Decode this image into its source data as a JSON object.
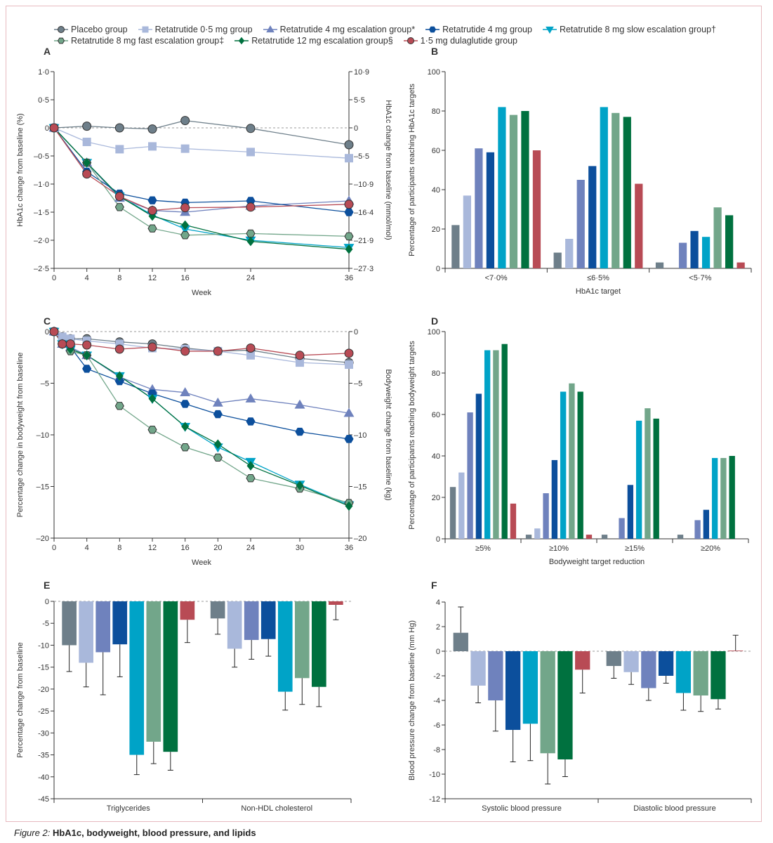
{
  "legend": [
    {
      "label": "Placebo group",
      "color": "#6e7f8a",
      "marker": "circle"
    },
    {
      "label": "Retatrutide 0·5 mg group",
      "color": "#a9b8db",
      "marker": "square"
    },
    {
      "label": "Retatrutide 4 mg escalation group*",
      "color": "#6f82bd",
      "marker": "triangle-up"
    },
    {
      "label": "Retatrutide 4 mg group",
      "color": "#0c4f9c",
      "marker": "hexagon"
    },
    {
      "label": "Retatrutide 8 mg slow escalation group†",
      "color": "#00a3c7",
      "marker": "triangle-down"
    },
    {
      "label": "Retatrutide 8 mg fast escalation group‡",
      "color": "#72a68a",
      "marker": "hexagon"
    },
    {
      "label": "Retatrutide 12 mg escalation group§",
      "color": "#00713f",
      "marker": "diamond"
    },
    {
      "label": "1·5 mg dulaglutide  group",
      "color": "#b84b55",
      "marker": "circle"
    }
  ],
  "caption": {
    "prefix": "Figure 2:",
    "title": "HbA1c, bodyweight, blood pressure, and lipids"
  },
  "chart_data": [
    {
      "panel": "A",
      "type": "line",
      "x": [
        0,
        4,
        8,
        12,
        16,
        24,
        36
      ],
      "xticklabels": [
        "0",
        "4",
        "8",
        "12",
        "16",
        "24",
        "36"
      ],
      "xlabel": "Week",
      "ylabel": "HbA1c change from baseline (%)",
      "ylabel_right": "HbA1c change from baseline (mmol/mol)",
      "ylim": [
        -2.5,
        1.0
      ],
      "yticks": [
        1.0,
        0.5,
        0,
        -0.5,
        -1.0,
        -1.5,
        -2.0,
        -2.5
      ],
      "yticklabels": [
        "1·0",
        "0·5",
        "0",
        "–0·5",
        "–1·0",
        "–1·5",
        "–2·0",
        "–2·5"
      ],
      "yticklabels_right": [
        "10·9",
        "5·5",
        "0",
        "–5·5",
        "–10·9",
        "–16·4",
        "–21·9",
        "–27·3"
      ],
      "series": [
        {
          "values": [
            0,
            0.03,
            0,
            -0.02,
            0.13,
            -0.01,
            -0.3
          ]
        },
        {
          "values": [
            0,
            -0.25,
            -0.38,
            -0.33,
            -0.37,
            -0.43,
            -0.54
          ]
        },
        {
          "values": [
            0,
            -0.62,
            -1.25,
            -1.47,
            -1.5,
            -1.39,
            -1.3
          ]
        },
        {
          "values": [
            0,
            -0.78,
            -1.17,
            -1.29,
            -1.33,
            -1.3,
            -1.5
          ]
        },
        {
          "values": [
            0,
            -0.62,
            -1.22,
            -1.55,
            -1.8,
            -2.0,
            -2.13
          ]
        },
        {
          "values": [
            0,
            -0.62,
            -1.41,
            -1.79,
            -1.91,
            -1.88,
            -1.93
          ]
        },
        {
          "values": [
            0,
            -0.62,
            -1.22,
            -1.57,
            -1.73,
            -2.02,
            -2.16
          ]
        },
        {
          "values": [
            0,
            -0.82,
            -1.22,
            -1.47,
            -1.42,
            -1.41,
            -1.36
          ]
        }
      ]
    },
    {
      "panel": "B",
      "type": "bar",
      "categories": [
        "<7·0%",
        "≤6·5%",
        "<5·7%"
      ],
      "xlabel": "HbA1c target",
      "ylabel": "Percentage of participants reaching HbA1c targets",
      "ylim": [
        0,
        100
      ],
      "yticks": [
        0,
        20,
        40,
        60,
        80,
        100
      ],
      "yticklabels": [
        "0",
        "20",
        "40",
        "60",
        "80",
        "100"
      ],
      "series": [
        {
          "values": [
            22,
            8,
            3
          ]
        },
        {
          "values": [
            37,
            15,
            0
          ]
        },
        {
          "values": [
            61,
            45,
            13
          ]
        },
        {
          "values": [
            59,
            52,
            19
          ]
        },
        {
          "values": [
            82,
            82,
            16
          ]
        },
        {
          "values": [
            78,
            79,
            31
          ]
        },
        {
          "values": [
            80,
            77,
            27
          ]
        },
        {
          "values": [
            60,
            43,
            3
          ]
        }
      ]
    },
    {
      "panel": "C",
      "type": "line",
      "x": [
        0,
        1,
        2,
        4,
        8,
        12,
        16,
        20,
        24,
        30,
        36
      ],
      "xticks": [
        0,
        4,
        8,
        12,
        16,
        20,
        24,
        30,
        36
      ],
      "xticklabels": [
        "0",
        "4",
        "8",
        "12",
        "16",
        "20",
        "24",
        "30",
        "36"
      ],
      "xlabel": "Week",
      "ylabel": "Percentage change in bodyweight from baseline",
      "ylabel_right": "Bodyweight change from baseline (kg)",
      "ylim": [
        -20,
        0
      ],
      "yticks": [
        0,
        -5,
        -10,
        -15,
        -20
      ],
      "yticklabels": [
        "0",
        "–5",
        "–10",
        "–15",
        "–20"
      ],
      "yticklabels_right": [
        "0",
        "–5",
        "–10",
        "–15",
        "–20"
      ],
      "series": [
        {
          "values": [
            0,
            -0.5,
            -0.7,
            -0.7,
            -1.0,
            -1.2,
            -1.6,
            -1.9,
            -1.8,
            -2.6,
            -3.0
          ]
        },
        {
          "values": [
            0,
            -0.5,
            -0.7,
            -0.9,
            -1.2,
            -1.6,
            -1.7,
            -1.9,
            -2.3,
            -3.0,
            -3.2
          ]
        },
        {
          "values": [
            0,
            -1.2,
            -1.5,
            -2.3,
            -4.4,
            -5.6,
            -5.9,
            -6.9,
            -6.5,
            -7.1,
            -7.9
          ]
        },
        {
          "values": [
            0,
            -1.2,
            -1.5,
            -3.6,
            -4.8,
            -6.0,
            -7.0,
            -8.0,
            -8.7,
            -9.7,
            -10.4
          ]
        },
        {
          "values": [
            0,
            -1.2,
            -1.7,
            -2.3,
            -4.3,
            -6.5,
            -9.2,
            -11.2,
            -12.6,
            -14.8,
            -16.8
          ]
        },
        {
          "values": [
            0,
            -1.2,
            -1.9,
            -2.3,
            -7.2,
            -9.5,
            -11.2,
            -12.2,
            -14.2,
            -15.2,
            -16.6
          ]
        },
        {
          "values": [
            0,
            -1.2,
            -1.7,
            -2.3,
            -4.3,
            -6.5,
            -9.2,
            -10.9,
            -13.0,
            -14.9,
            -16.9
          ]
        },
        {
          "values": [
            0,
            -1.2,
            -1.2,
            -1.3,
            -1.7,
            -1.5,
            -1.9,
            -1.9,
            -1.6,
            -2.3,
            -2.1
          ]
        }
      ]
    },
    {
      "panel": "D",
      "type": "bar",
      "categories": [
        "≥5%",
        "≥10%",
        "≥15%",
        "≥20%"
      ],
      "xlabel": "Bodyweight target reduction",
      "ylabel": "Percentage of participants reaching bodyweight targets",
      "ylim": [
        0,
        100
      ],
      "yticks": [
        0,
        20,
        40,
        60,
        80,
        100
      ],
      "yticklabels": [
        "0",
        "20",
        "40",
        "60",
        "80",
        "100"
      ],
      "series": [
        {
          "values": [
            25,
            2,
            2,
            2
          ]
        },
        {
          "values": [
            32,
            5,
            0,
            0
          ]
        },
        {
          "values": [
            61,
            22,
            10,
            9
          ]
        },
        {
          "values": [
            70,
            38,
            26,
            14
          ]
        },
        {
          "values": [
            91,
            71,
            57,
            39
          ]
        },
        {
          "values": [
            91,
            75,
            63,
            39
          ]
        },
        {
          "values": [
            94,
            71,
            58,
            40
          ]
        },
        {
          "values": [
            17,
            2,
            0,
            0
          ]
        }
      ]
    },
    {
      "panel": "E",
      "type": "bar",
      "categories": [
        "Triglycerides",
        "Non-HDL cholesterol"
      ],
      "xlabel": "",
      "ylabel": "Percentage change from baseline",
      "ylim": [
        -45,
        0
      ],
      "yticks": [
        0,
        -5,
        -10,
        -15,
        -20,
        -25,
        -30,
        -35,
        -40,
        -45
      ],
      "yticklabels": [
        "0",
        "-5",
        "-10",
        "-15",
        "-20",
        "-25",
        "-30",
        "-35",
        "-40",
        "-45"
      ],
      "series": [
        {
          "values": [
            -10,
            -3.9
          ],
          "error_end": [
            -16,
            -7.5
          ]
        },
        {
          "values": [
            -14,
            -10.8
          ],
          "error_end": [
            -19.5,
            -15
          ]
        },
        {
          "values": [
            -11.6,
            -8.8
          ],
          "error_end": [
            -21.3,
            -13.2
          ]
        },
        {
          "values": [
            -9.8,
            -8.6
          ],
          "error_end": [
            -17.2,
            -12.5
          ]
        },
        {
          "values": [
            -35,
            -20.6
          ],
          "error_end": [
            -39.5,
            -24.8
          ]
        },
        {
          "values": [
            -32,
            -17.5
          ],
          "error_end": [
            -37,
            -23.5
          ]
        },
        {
          "values": [
            -34.3,
            -19.5
          ],
          "error_end": [
            -38.5,
            -24
          ]
        },
        {
          "values": [
            -4.2,
            -0.8
          ],
          "error_end": [
            -9.4,
            -4.2
          ]
        }
      ]
    },
    {
      "panel": "F",
      "type": "bar",
      "categories": [
        "Systolic blood pressure",
        "Diastolic blood pressure"
      ],
      "xlabel": "",
      "ylabel": "Blood pressure change from baseline (mm Hg)",
      "ylim": [
        -12,
        4
      ],
      "yticks": [
        4,
        2,
        0,
        -2,
        -4,
        -6,
        -8,
        -10,
        -12
      ],
      "yticklabels": [
        "4",
        "2",
        "0",
        "-2",
        "-4",
        "-6",
        "-8",
        "-10",
        "-12"
      ],
      "series": [
        {
          "values": [
            1.5,
            -1.2
          ],
          "error_end": [
            3.6,
            -2.2
          ]
        },
        {
          "values": [
            -2.8,
            -1.7
          ],
          "error_end": [
            -4.2,
            -2.7
          ]
        },
        {
          "values": [
            -4.0,
            -3.0
          ],
          "error_end": [
            -6.5,
            -4.0
          ]
        },
        {
          "values": [
            -6.4,
            -2.0
          ],
          "error_end": [
            -9.0,
            -2.6
          ]
        },
        {
          "values": [
            -5.9,
            -3.4
          ],
          "error_end": [
            -8.9,
            -4.8
          ]
        },
        {
          "values": [
            -8.3,
            -3.6
          ],
          "error_end": [
            -10.8,
            -4.9
          ]
        },
        {
          "values": [
            -8.8,
            -3.9
          ],
          "error_end": [
            -10.2,
            -4.7
          ]
        },
        {
          "values": [
            -1.5,
            0.05
          ],
          "error_end": [
            -3.4,
            1.3
          ]
        }
      ]
    }
  ]
}
